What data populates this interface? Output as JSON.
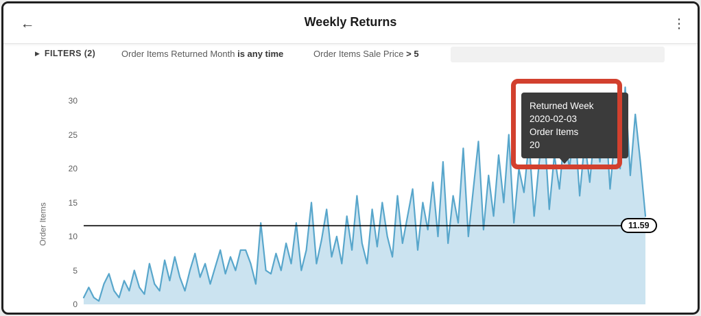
{
  "header": {
    "title": "Weekly Returns",
    "back_icon": "←",
    "menu_icon": "⋮"
  },
  "filters": {
    "toggle_label": "FILTERS (2)",
    "caret_icon": "▶",
    "items": [
      {
        "field": "Order Items Returned Month",
        "condition": "is any time"
      },
      {
        "field": "Order Items Sale Price",
        "condition": "> 5"
      }
    ]
  },
  "tooltip": {
    "lines": [
      "Returned Week",
      "2020-02-03",
      "Order Items",
      "20"
    ]
  },
  "chart_data": {
    "type": "area",
    "title": "Weekly Returns",
    "xlabel": "",
    "ylabel": "Order Items",
    "ylim": [
      0,
      32.5
    ],
    "yticks": [
      0,
      5,
      10,
      15,
      20,
      25,
      30
    ],
    "grid": false,
    "legend": false,
    "reference_line": {
      "value": 11.59,
      "label": "11.59"
    },
    "colors": {
      "line": "#58A6CB",
      "fill": "#CBE3F0",
      "reference": "#000000",
      "highlight": "#D2402E",
      "tooltip_bg": "#3B3B3B"
    },
    "series": [
      {
        "name": "Order Items",
        "values": [
          1,
          2.5,
          1,
          0.5,
          3,
          4.5,
          2,
          1,
          3.5,
          2,
          5,
          2.5,
          1.5,
          6,
          3,
          2,
          6.5,
          3.5,
          7,
          4,
          2,
          5,
          7.5,
          4,
          6,
          3,
          5.5,
          8,
          4.5,
          7,
          5,
          8,
          8,
          6,
          3,
          12,
          5,
          4.5,
          7.5,
          5,
          9,
          6,
          12,
          5,
          8,
          15,
          6,
          9.5,
          14,
          7,
          10,
          6,
          13,
          8,
          16,
          9,
          6,
          14,
          8.5,
          15,
          10,
          7,
          16,
          9,
          13,
          17,
          8,
          15,
          11,
          18,
          10,
          21,
          9,
          16,
          12,
          23,
          10,
          17,
          24,
          11,
          19,
          13,
          22,
          15,
          25,
          12,
          20,
          16.5,
          24,
          13,
          21,
          26,
          14,
          22,
          17,
          25,
          20,
          27,
          16,
          24,
          18,
          26,
          21,
          29,
          17,
          25,
          20,
          32,
          19,
          28,
          21,
          13
        ]
      }
    ]
  }
}
